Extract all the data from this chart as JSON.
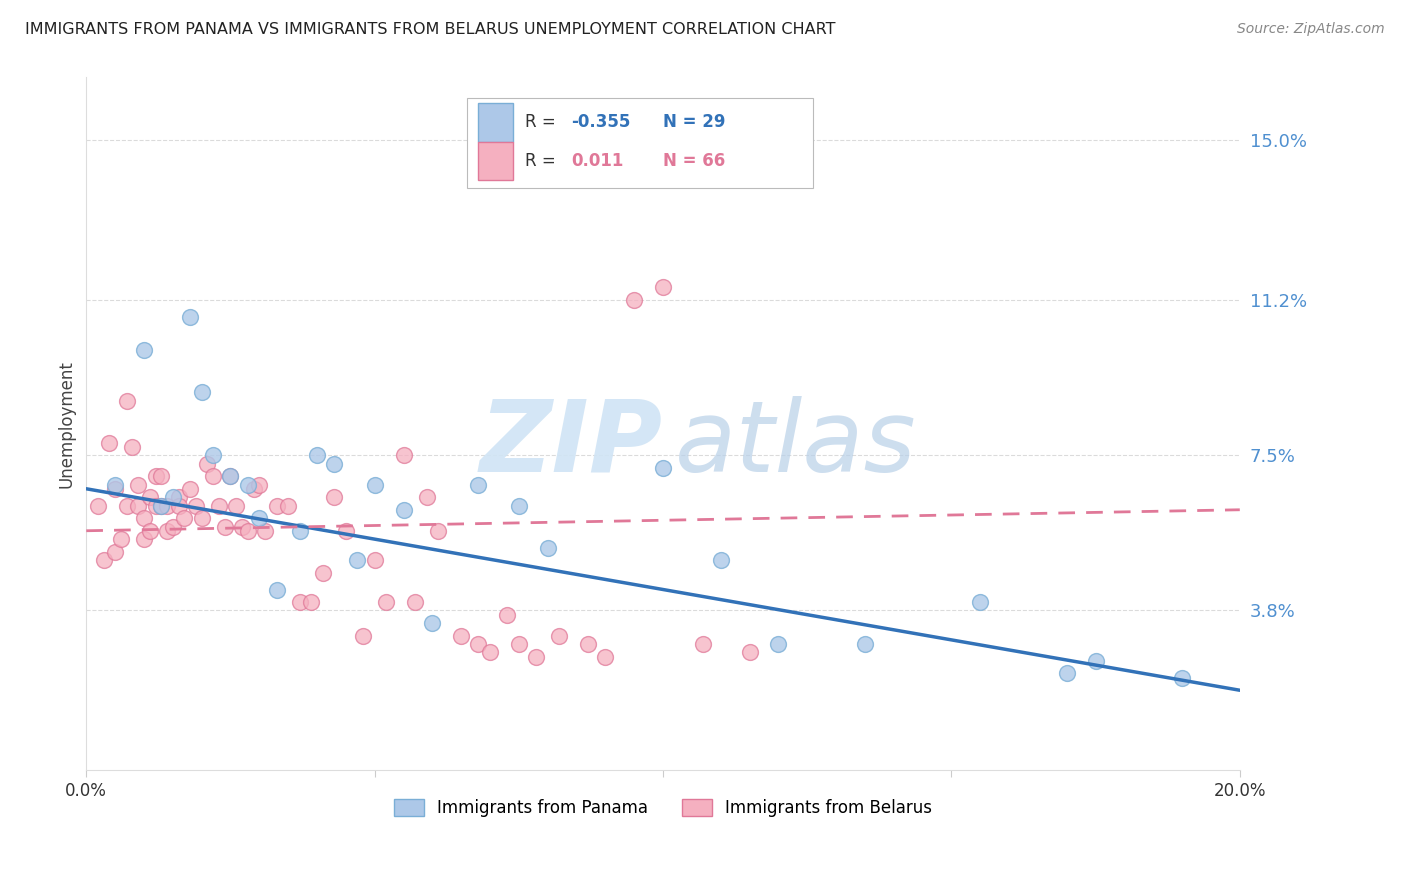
{
  "title": "IMMIGRANTS FROM PANAMA VS IMMIGRANTS FROM BELARUS UNEMPLOYMENT CORRELATION CHART",
  "source": "Source: ZipAtlas.com",
  "ylabel": "Unemployment",
  "xlim": [
    0.0,
    0.2
  ],
  "ylim": [
    0.0,
    0.165
  ],
  "yticks": [
    0.038,
    0.075,
    0.112,
    0.15
  ],
  "ytick_labels": [
    "3.8%",
    "7.5%",
    "11.2%",
    "15.0%"
  ],
  "panama_color": "#adc8e8",
  "panama_edge_color": "#7aaed6",
  "belarus_color": "#f5b0c0",
  "belarus_edge_color": "#e07898",
  "panama_line_color": "#3272b8",
  "belarus_line_color": "#e07898",
  "grid_color": "#cccccc",
  "right_label_color": "#5090d0",
  "panama_x": [
    0.005,
    0.01,
    0.013,
    0.015,
    0.018,
    0.02,
    0.022,
    0.025,
    0.028,
    0.03,
    0.033,
    0.037,
    0.04,
    0.043,
    0.047,
    0.05,
    0.055,
    0.06,
    0.068,
    0.075,
    0.08,
    0.1,
    0.11,
    0.12,
    0.135,
    0.155,
    0.17,
    0.175,
    0.19
  ],
  "panama_y": [
    0.068,
    0.1,
    0.063,
    0.065,
    0.108,
    0.09,
    0.075,
    0.07,
    0.068,
    0.06,
    0.043,
    0.057,
    0.075,
    0.073,
    0.05,
    0.068,
    0.062,
    0.035,
    0.068,
    0.063,
    0.053,
    0.072,
    0.05,
    0.03,
    0.03,
    0.04,
    0.023,
    0.026,
    0.022
  ],
  "belarus_x": [
    0.002,
    0.003,
    0.004,
    0.005,
    0.005,
    0.006,
    0.007,
    0.007,
    0.008,
    0.009,
    0.009,
    0.01,
    0.01,
    0.011,
    0.011,
    0.012,
    0.012,
    0.013,
    0.013,
    0.014,
    0.014,
    0.015,
    0.016,
    0.016,
    0.017,
    0.018,
    0.019,
    0.02,
    0.021,
    0.022,
    0.023,
    0.024,
    0.025,
    0.026,
    0.027,
    0.028,
    0.029,
    0.03,
    0.031,
    0.033,
    0.035,
    0.037,
    0.039,
    0.041,
    0.043,
    0.045,
    0.048,
    0.05,
    0.052,
    0.055,
    0.057,
    0.059,
    0.061,
    0.065,
    0.068,
    0.07,
    0.073,
    0.075,
    0.078,
    0.082,
    0.087,
    0.09,
    0.095,
    0.1,
    0.107,
    0.115
  ],
  "belarus_y": [
    0.063,
    0.05,
    0.078,
    0.067,
    0.052,
    0.055,
    0.088,
    0.063,
    0.077,
    0.068,
    0.063,
    0.06,
    0.055,
    0.065,
    0.057,
    0.063,
    0.07,
    0.07,
    0.063,
    0.063,
    0.057,
    0.058,
    0.065,
    0.063,
    0.06,
    0.067,
    0.063,
    0.06,
    0.073,
    0.07,
    0.063,
    0.058,
    0.07,
    0.063,
    0.058,
    0.057,
    0.067,
    0.068,
    0.057,
    0.063,
    0.063,
    0.04,
    0.04,
    0.047,
    0.065,
    0.057,
    0.032,
    0.05,
    0.04,
    0.075,
    0.04,
    0.065,
    0.057,
    0.032,
    0.03,
    0.028,
    0.037,
    0.03,
    0.027,
    0.032,
    0.03,
    0.027,
    0.112,
    0.115,
    0.03,
    0.028
  ],
  "panama_trend": [
    0.067,
    0.019
  ],
  "belarus_trend": [
    0.057,
    0.062
  ],
  "watermark_zip_color": "#d0e4f5",
  "watermark_atlas_color": "#b8d0e8"
}
